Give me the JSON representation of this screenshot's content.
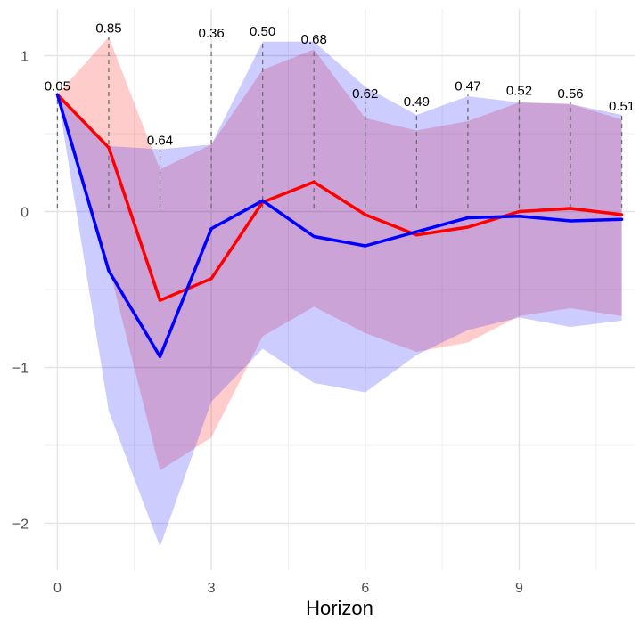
{
  "chart_data": {
    "type": "line",
    "title": "",
    "xlabel": "Horizon",
    "ylabel": "",
    "xlim": [
      -0.25,
      11.25
    ],
    "ylim": [
      -2.3,
      1.3
    ],
    "x_ticks": [
      0,
      3,
      6,
      9
    ],
    "x_tick_labels": [
      "0",
      "3",
      "6",
      "9"
    ],
    "y_ticks": [
      -2,
      -1,
      0,
      1
    ],
    "y_tick_labels": [
      "−2",
      "−1",
      "0",
      "1"
    ],
    "grid": true,
    "legend": "none",
    "x": [
      0,
      1,
      2,
      3,
      4,
      5,
      6,
      7,
      8,
      9,
      10,
      11
    ],
    "series": [
      {
        "color": "#ff0000",
        "band_color": "#ff0000",
        "values": [
          0.75,
          0.41,
          -0.57,
          -0.43,
          0.06,
          0.19,
          -0.02,
          -0.15,
          -0.1,
          0.0,
          0.02,
          -0.02
        ],
        "lower": [
          0.75,
          -0.35,
          -1.66,
          -1.45,
          -0.8,
          -0.61,
          -0.78,
          -0.9,
          -0.84,
          -0.67,
          -0.62,
          -0.67
        ],
        "upper": [
          0.75,
          1.12,
          0.27,
          0.43,
          0.91,
          1.04,
          0.6,
          0.52,
          0.58,
          0.7,
          0.69,
          0.59
        ]
      },
      {
        "color": "#0000ff",
        "band_color": "#0000ff",
        "values": [
          0.75,
          -0.38,
          -0.93,
          -0.11,
          0.07,
          -0.16,
          -0.22,
          -0.13,
          -0.04,
          -0.03,
          -0.06,
          -0.05
        ],
        "lower": [
          0.75,
          -1.28,
          -2.15,
          -1.22,
          -0.88,
          -1.1,
          -1.16,
          -0.92,
          -0.76,
          -0.68,
          -0.74,
          -0.7
        ],
        "upper": [
          0.75,
          0.42,
          0.4,
          0.43,
          1.09,
          1.09,
          0.8,
          0.62,
          0.74,
          0.7,
          0.69,
          0.62
        ]
      }
    ],
    "annotations": [
      {
        "x": 0,
        "label": "0.05",
        "y": 0.75
      },
      {
        "x": 1,
        "label": "0.85",
        "y": 1.12
      },
      {
        "x": 2,
        "label": "0.64",
        "y": 0.4
      },
      {
        "x": 3,
        "label": "0.36",
        "y": 1.09
      },
      {
        "x": 4,
        "label": "0.50",
        "y": 1.1
      },
      {
        "x": 5,
        "label": "0.68",
        "y": 1.05
      },
      {
        "x": 6,
        "label": "0.62",
        "y": 0.7
      },
      {
        "x": 7,
        "label": "0.49",
        "y": 0.65
      },
      {
        "x": 8,
        "label": "0.47",
        "y": 0.75
      },
      {
        "x": 9,
        "label": "0.52",
        "y": 0.72
      },
      {
        "x": 10,
        "label": "0.56",
        "y": 0.7
      },
      {
        "x": 11,
        "label": "0.51",
        "y": 0.62
      }
    ],
    "annotation_line_bottom": 0.02
  }
}
